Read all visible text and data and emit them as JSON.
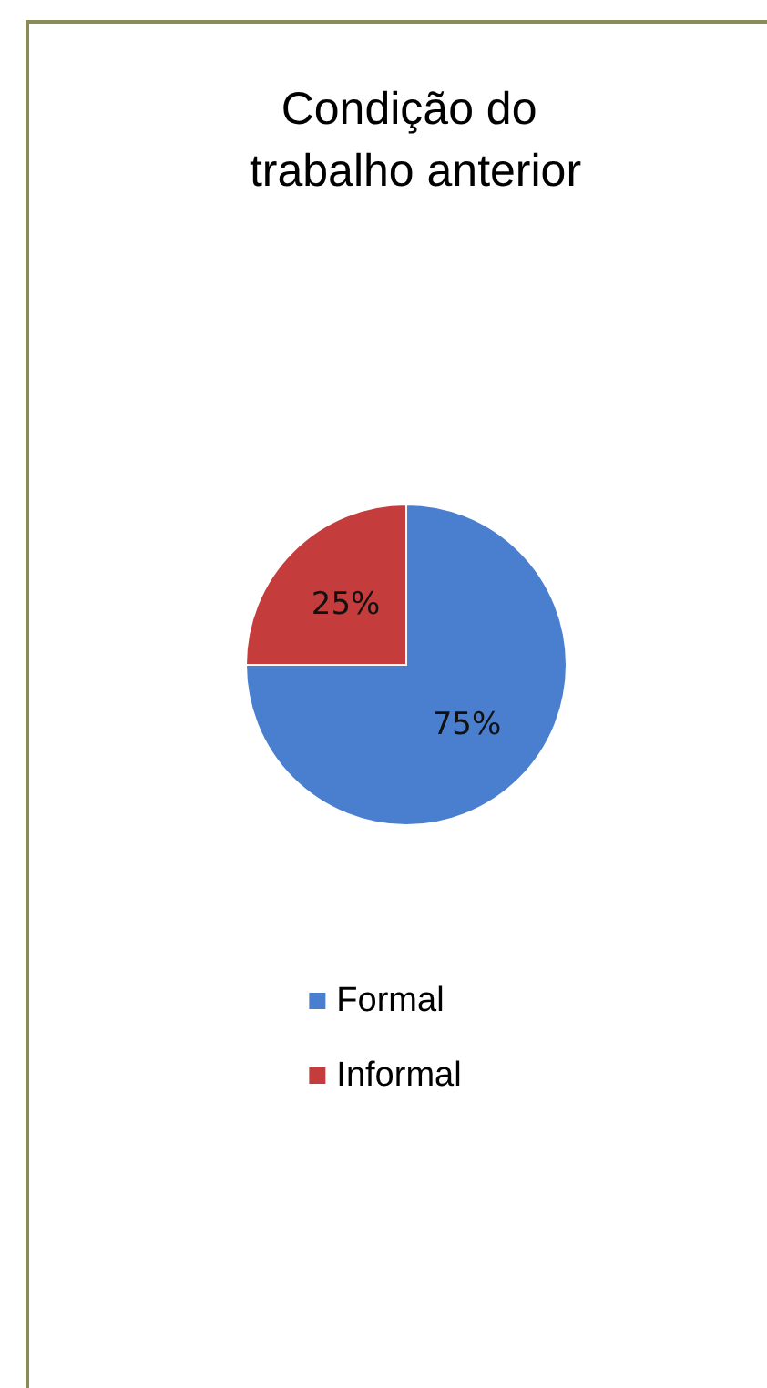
{
  "chart_data": {
    "type": "pie",
    "title": "Condição do trabalho anterior",
    "categories": [
      "Formal",
      "Informal"
    ],
    "values": [
      75,
      25
    ],
    "colors": [
      "#4a7fd0",
      "#c43c3c"
    ],
    "value_labels": [
      "75%",
      "25%"
    ],
    "legend": "bottom"
  }
}
